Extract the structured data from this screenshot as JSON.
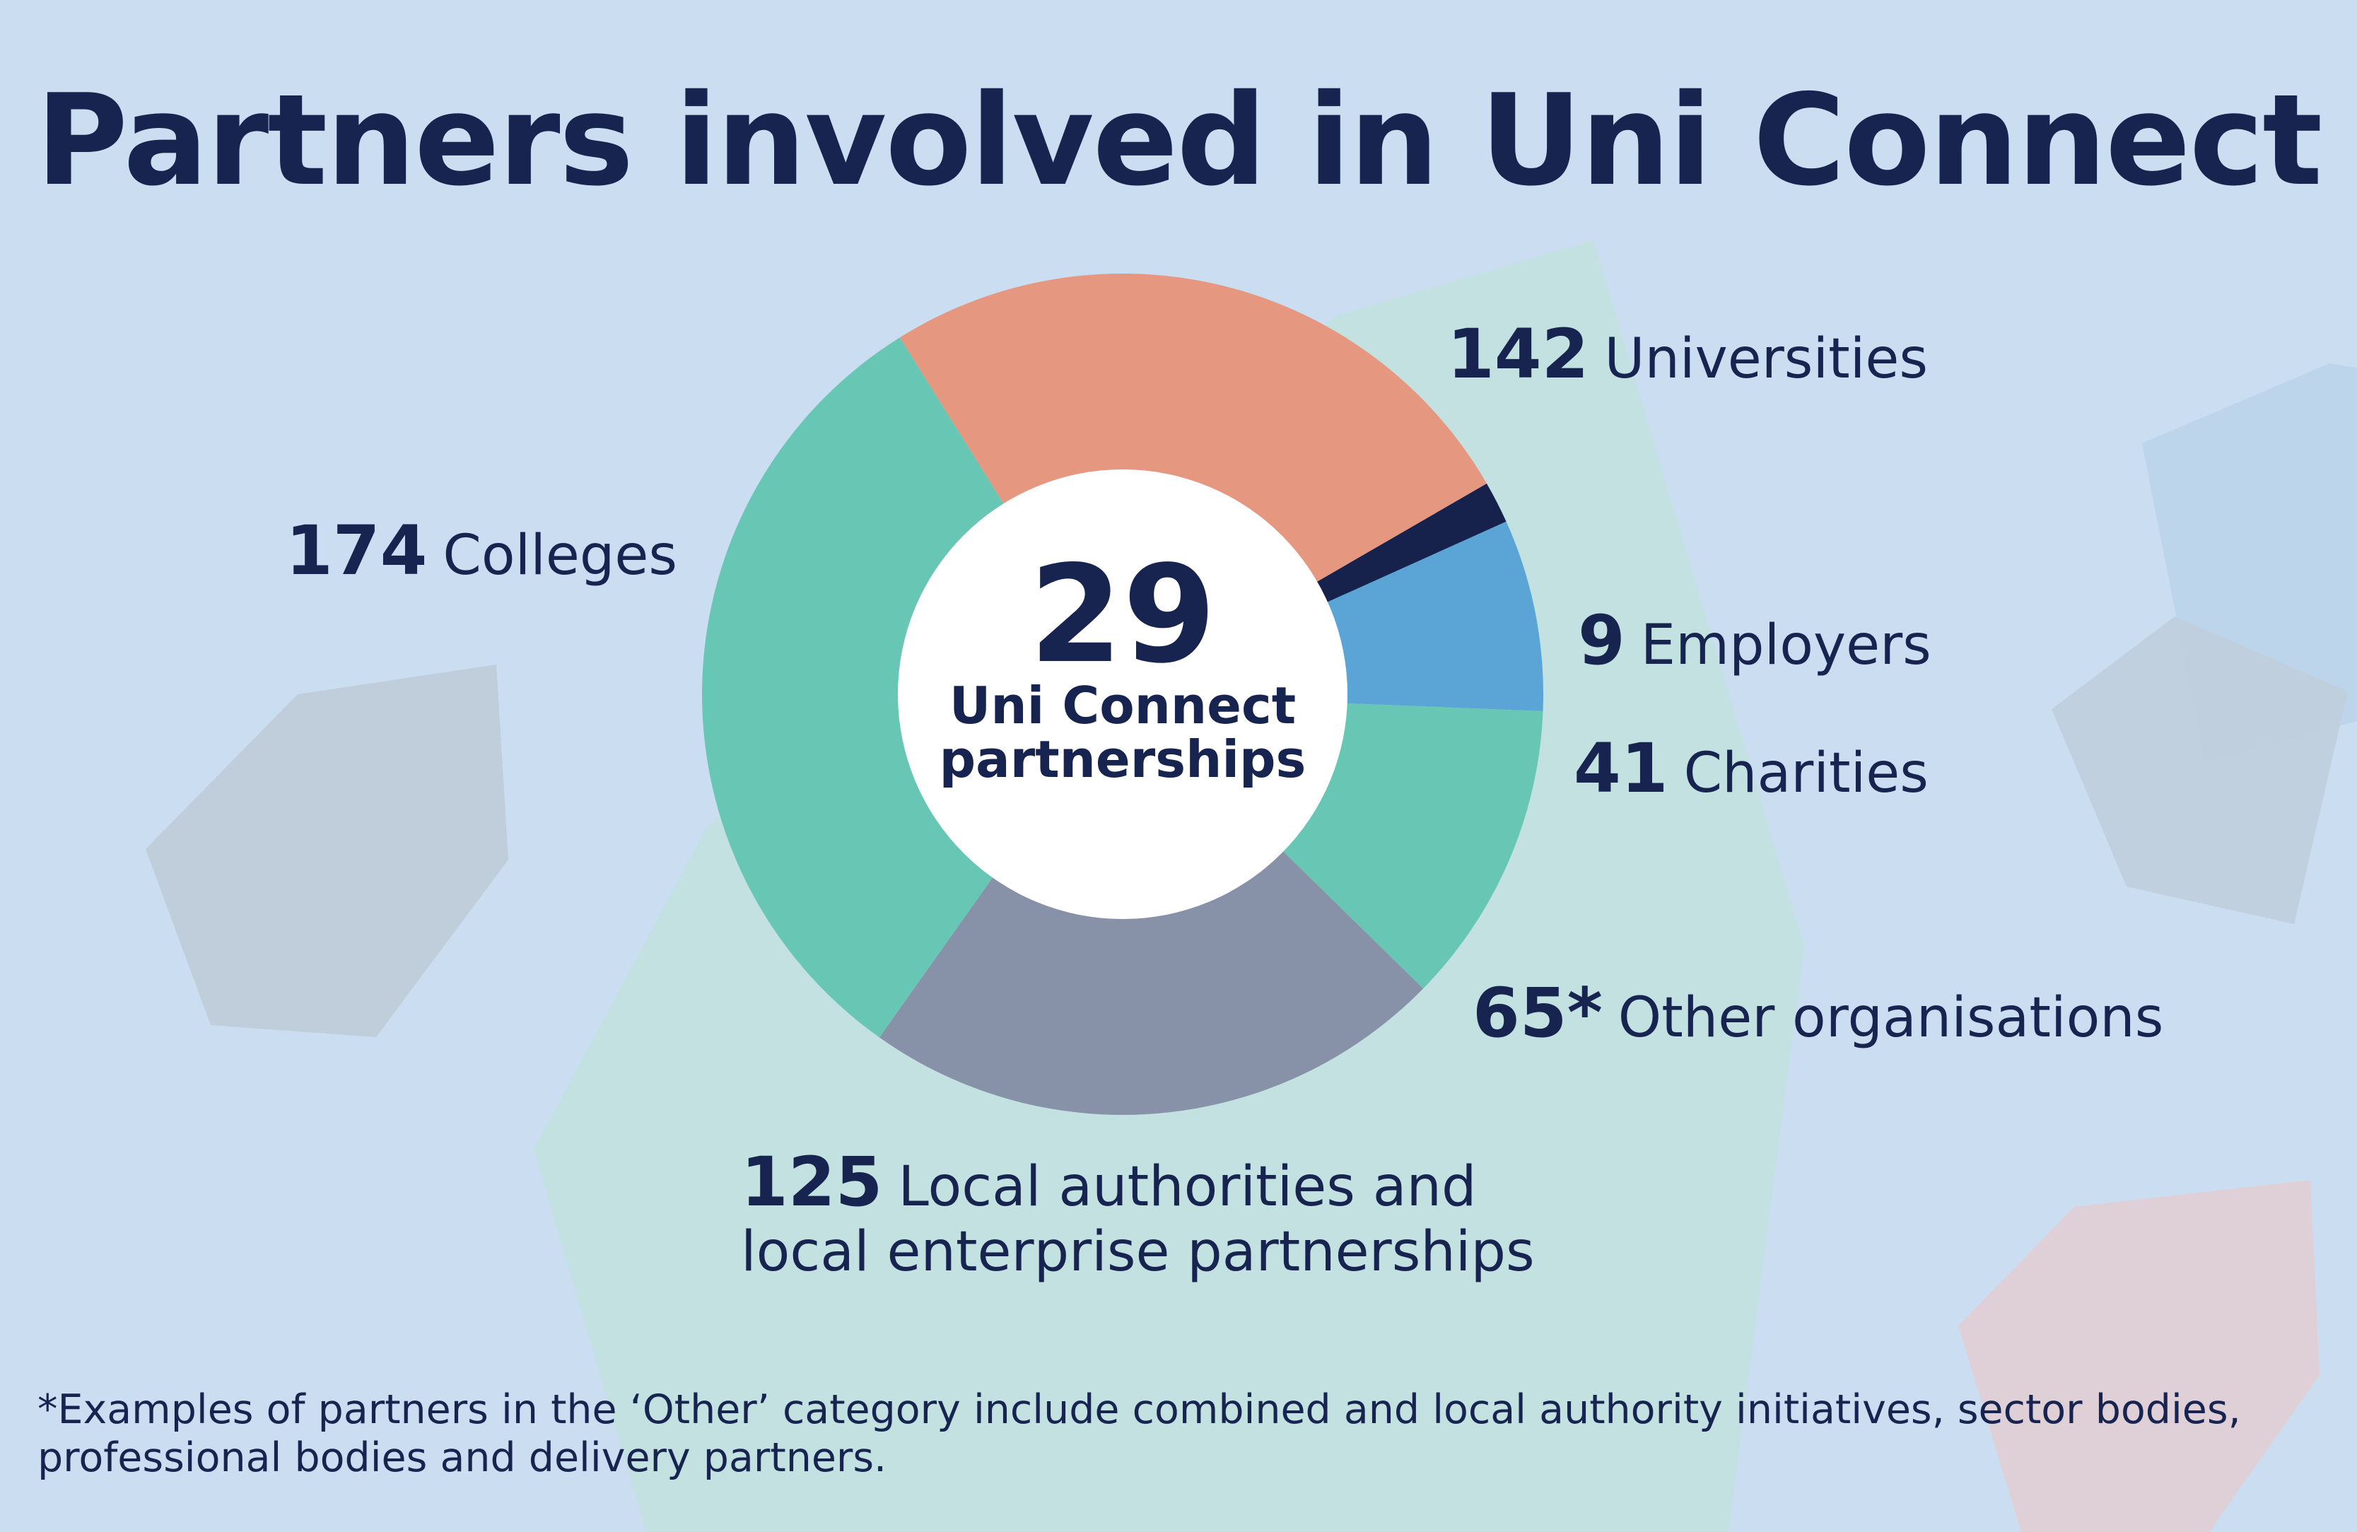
{
  "title": "Partners involved in Uni Connect",
  "center": {
    "value": "29",
    "line1": "Uni Connect",
    "line2": "partnerships"
  },
  "footnote": "*Examples of partners in the ‘Other’ category include combined and local authority initiatives, sector bodies, professional bodies and delivery partners.",
  "colors": {
    "background": "#cbddf0",
    "text": "#17244f"
  },
  "chart_data": {
    "type": "pie",
    "title": "Partners involved in Uni Connect",
    "donut": true,
    "slices": [
      {
        "label": "Universities",
        "value": 142,
        "display": "142",
        "color": "#e6977f"
      },
      {
        "label": "Employers",
        "value": 9,
        "display": "9",
        "color": "#16224b"
      },
      {
        "label": "Charities",
        "value": 41,
        "display": "41",
        "color": "#5aa5d6"
      },
      {
        "label": "Other organisations",
        "value": 65,
        "display": "65*",
        "color": "#68c7b4"
      },
      {
        "label": "Local authorities and local enterprise partnerships",
        "label_line1": "Local authorities and",
        "label_line2": "local enterprise partnerships",
        "value": 125,
        "display": "125",
        "color": "#8791a7"
      },
      {
        "label": "Colleges",
        "value": 174,
        "display": "174",
        "color": "#68c7b4"
      }
    ]
  }
}
